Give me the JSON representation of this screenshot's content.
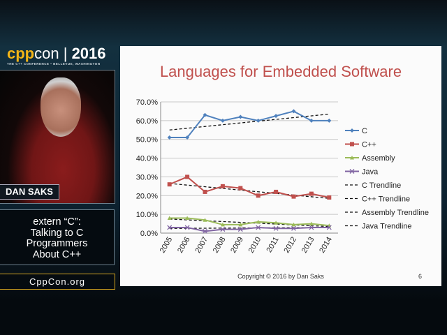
{
  "branding": {
    "logo_cpp": "cpp",
    "logo_con": "con",
    "logo_sep": " | ",
    "logo_year": "2016",
    "tagline": "THE C++ CONFERENCE • BELLEVUE, WASHINGTON",
    "site": "CppCon.org"
  },
  "speaker": {
    "name": "DAN SAKS"
  },
  "talk": {
    "line1": "extern “C”:",
    "line2": "Talking to C",
    "line3": "Programmers",
    "line4": "About C++"
  },
  "slide": {
    "title": "Languages for Embedded Software",
    "copyright": "Copyright © 2016 by Dan Saks",
    "page": "6"
  },
  "chart_data": {
    "type": "line",
    "title": "Languages for Embedded Software",
    "x": [
      "2005",
      "2006",
      "2007",
      "2008",
      "2009",
      "2010",
      "2011",
      "2012",
      "2013",
      "2014"
    ],
    "ylim": [
      0,
      70
    ],
    "yticks": [
      "0.0%",
      "10.0%",
      "20.0%",
      "30.0%",
      "40.0%",
      "50.0%",
      "60.0%",
      "70.0%"
    ],
    "grid": true,
    "legend": "right",
    "series": [
      {
        "name": "C",
        "color": "#4f81bd",
        "marker": "diamond",
        "values": [
          51,
          51,
          63,
          60,
          62,
          60,
          62.5,
          65,
          60,
          60
        ]
      },
      {
        "name": "C++",
        "color": "#c0504d",
        "marker": "square",
        "values": [
          26,
          30,
          22,
          25,
          24,
          20,
          22,
          19.5,
          21,
          19
        ]
      },
      {
        "name": "Assembly",
        "color": "#9bbb59",
        "marker": "triangle",
        "values": [
          8,
          8,
          7,
          4.5,
          4.5,
          6,
          5.5,
          4.5,
          5,
          4
        ]
      },
      {
        "name": "Java",
        "color": "#8064a2",
        "marker": "x",
        "values": [
          3,
          3,
          1,
          2,
          2,
          3,
          2.5,
          2.5,
          3,
          3
        ]
      }
    ],
    "trendlines": [
      {
        "name": "C Trendline",
        "start": 55,
        "end": 63.5
      },
      {
        "name": "C++ Trendline",
        "start": 26.5,
        "end": 18.5
      },
      {
        "name": "Assembly Trendline",
        "start": 7.5,
        "end": 3.5
      },
      {
        "name": "Java Trendline",
        "start": 2.5,
        "end": 3
      }
    ]
  }
}
